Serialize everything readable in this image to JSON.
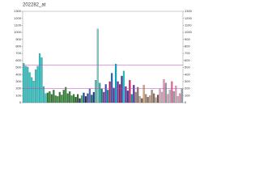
{
  "chart_data": {
    "type": "bar",
    "title": "202282_at",
    "values": [
      560,
      520,
      510,
      430,
      360,
      310,
      470,
      520,
      700,
      640,
      230,
      130,
      140,
      160,
      120,
      180,
      100,
      90,
      150,
      110,
      180,
      220,
      130,
      160,
      100,
      120,
      80,
      120,
      60,
      100,
      140,
      90,
      130,
      200,
      110,
      150,
      320,
      1050,
      280,
      200,
      150,
      260,
      180,
      300,
      420,
      210,
      550,
      300,
      260,
      380,
      450,
      230,
      170,
      320,
      120,
      250,
      150,
      220,
      90,
      60,
      250,
      120,
      80,
      100,
      180,
      130,
      70,
      110,
      200,
      150,
      330,
      280,
      120,
      180,
      300,
      160,
      240,
      90,
      130,
      200
    ],
    "colors": [
      "#2ec4c4",
      "#2ec4c4",
      "#2ec4c4",
      "#2ec4c4",
      "#2ec4c4",
      "#2ec4c4",
      "#2ec4c4",
      "#2ec4c4",
      "#2ec4c4",
      "#2ec4c4",
      "#2ec4c4",
      "#2ec4c4",
      "#2e7d32",
      "#2e7d32",
      "#2e7d32",
      "#2e7d32",
      "#388e3c",
      "#388e3c",
      "#2e7d32",
      "#388e3c",
      "#2e7d32",
      "#388e3c",
      "#2e7d32",
      "#2e7d32",
      "#388e3c",
      "#2e7d32",
      "#1b5e20",
      "#33691e",
      "#1a237e",
      "#4caf50",
      "#0d47a1",
      "#263238",
      "#3949ab",
      "#5c6bc0",
      "#00695c",
      "#283593",
      "#4db6ac",
      "#80cbc4",
      "#26a69a",
      "#00897b",
      "#8e24aa",
      "#3f51b5",
      "#00838f",
      "#c2185b",
      "#1565c0",
      "#6a1b9a",
      "#00acc1",
      "#5e35b1",
      "#ad1457",
      "#283593",
      "#26c6da",
      "#7b1fa2",
      "#303f9f",
      "#d81b60",
      "#0097a7",
      "#512da8",
      "#a1887f",
      "#8d6e63",
      "#bcaaa4",
      "#795548",
      "#d7a86e",
      "#a1887f",
      "#8d6e63",
      "#c8a27c",
      "#a1887f",
      "#8d6e63",
      "#bcaaa4",
      "#795548",
      "#e8a0b4",
      "#b0bec5",
      "#f48fb1",
      "#90a4ae",
      "#e8a0b4",
      "#b0bec5",
      "#f06292",
      "#90a4ae",
      "#e8a0b4",
      "#b0bec5",
      "#f48fb1",
      "#90a4ae"
    ],
    "ylim": [
      0,
      1300
    ],
    "yticks": [
      0,
      100,
      200,
      300,
      400,
      500,
      600,
      700,
      800,
      900,
      1000,
      1100,
      1200,
      1300
    ],
    "y2lim": [
      0,
      1300
    ],
    "y2ticks": [
      0,
      100,
      200,
      300,
      400,
      500,
      600,
      700,
      800,
      900,
      1000,
      1100,
      1200,
      1300
    ],
    "reference_lines": [
      {
        "value": 535,
        "color": "#c040c0"
      },
      {
        "value": 200,
        "color": "#c040c0"
      }
    ]
  }
}
